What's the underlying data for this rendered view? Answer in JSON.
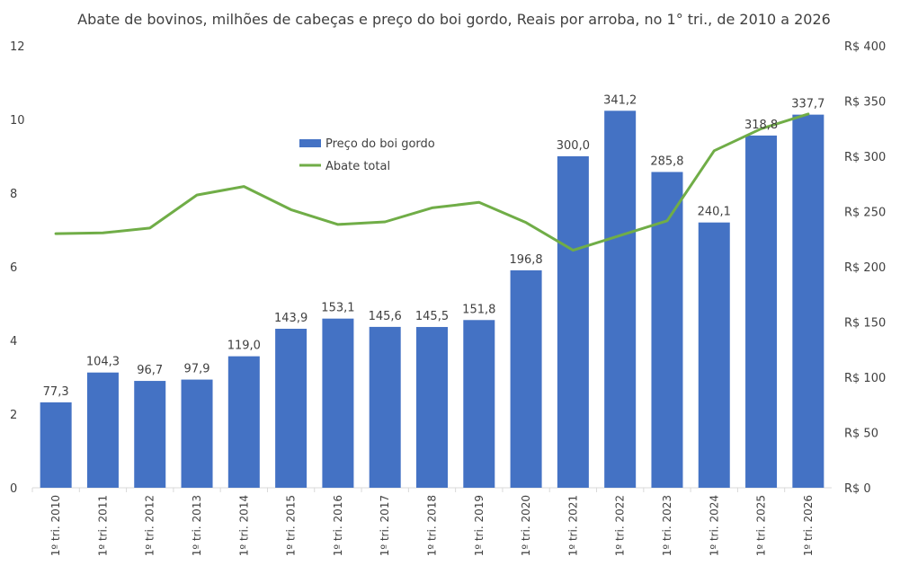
{
  "chart_data": {
    "type": "bar",
    "title": "Abate de bovinos, milhões de cabeças e preço do boi gordo, Reais por arroba, no 1° tri., de 2010 a 2026",
    "categories": [
      "1º tri. 2010",
      "1º tri. 2011",
      "1º tri. 2012",
      "1º tri. 2013",
      "1º tri. 2014",
      "1º tri. 2015",
      "1º tri. 2016",
      "1º tri. 2017",
      "1º tri. 2018",
      "1º tri. 2019",
      "1º tri. 2020",
      "1º tri. 2021",
      "1º tri. 2022",
      "1º tri. 2023",
      "1º tri. 2024",
      "1º tri. 2025",
      "1º tri. 2026"
    ],
    "series": [
      {
        "name": "Preço do boi gordo",
        "kind": "bar",
        "axis": "right",
        "color": "#4472C4",
        "values": [
          77.3,
          104.3,
          96.7,
          97.9,
          119.0,
          143.9,
          153.1,
          145.6,
          145.5,
          151.8,
          196.8,
          300.0,
          341.2,
          285.8,
          240.1,
          318.8,
          337.7
        ],
        "labels": [
          "77,3",
          "104,3",
          "96,7",
          "97,9",
          "119,0",
          "143,9",
          "153,1",
          "145,6",
          "145,5",
          "151,8",
          "196,8",
          "300,0",
          "341,2",
          "285,8",
          "240,1",
          "318,8",
          "337,7"
        ]
      },
      {
        "name": "Abate total",
        "kind": "line",
        "axis": "left",
        "color": "#70AD47",
        "values": [
          6.9,
          6.92,
          7.05,
          7.95,
          8.18,
          7.55,
          7.15,
          7.22,
          7.6,
          7.75,
          7.2,
          6.45,
          6.85,
          7.25,
          9.15,
          9.75,
          10.15
        ]
      }
    ],
    "ylim": [
      0,
      12
    ],
    "y_ticks": [
      "0",
      "2",
      "4",
      "6",
      "8",
      "10",
      "12"
    ],
    "y2lim": [
      0,
      400
    ],
    "y2_ticks": [
      "R$ 0",
      "R$ 50",
      "R$ 100",
      "R$ 150",
      "R$ 200",
      "R$ 250",
      "R$ 300",
      "R$ 350",
      "R$ 400"
    ],
    "legend_position": "upper-center",
    "grid": false
  }
}
